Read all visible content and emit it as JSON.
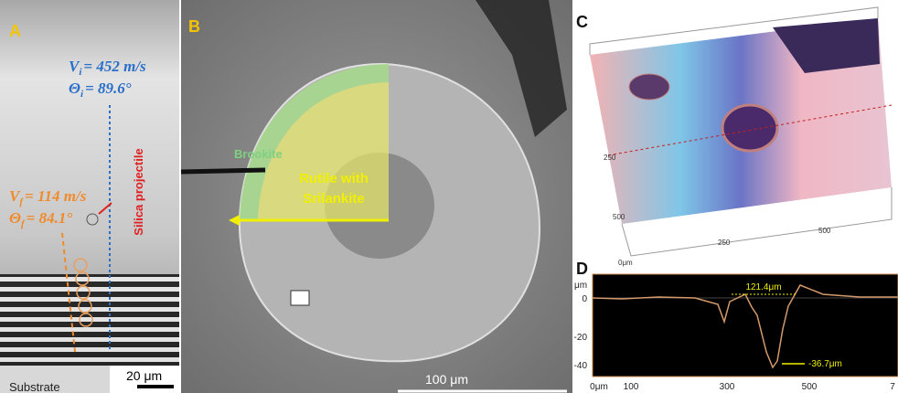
{
  "panels": {
    "a": {
      "label": "A",
      "initial": {
        "v_symbol": "V",
        "v_sub": "i",
        "v_text": "= 452 m/s",
        "t_symbol": "Θ",
        "t_sub": "i",
        "t_text": "= 89.6°"
      },
      "final": {
        "v_symbol": "V",
        "v_sub": "f",
        "v_text": "= 114 m/s",
        "t_symbol": "Θ",
        "t_sub": "f",
        "t_text": "= 84.1°"
      },
      "projectile": "Silica projectile",
      "scale": "20 μm",
      "substrate": "Substrate"
    },
    "b": {
      "label": "B",
      "brookite": "Brookite",
      "rutile": [
        "Rutile with",
        "Srilankite"
      ],
      "scale": "100 μm"
    },
    "c": {
      "label": "C",
      "axis_labels": [
        "250",
        "500",
        "250",
        "500",
        "0μm"
      ]
    },
    "d": {
      "label": "D",
      "y_unit": "μm",
      "y_ticks": [
        "0",
        "-20",
        "-40"
      ],
      "x_ticks": [
        "0μm",
        "100",
        "300",
        "500",
        "7"
      ],
      "width_label": "121.4μm",
      "depth_label": "-36.7μm"
    }
  }
}
